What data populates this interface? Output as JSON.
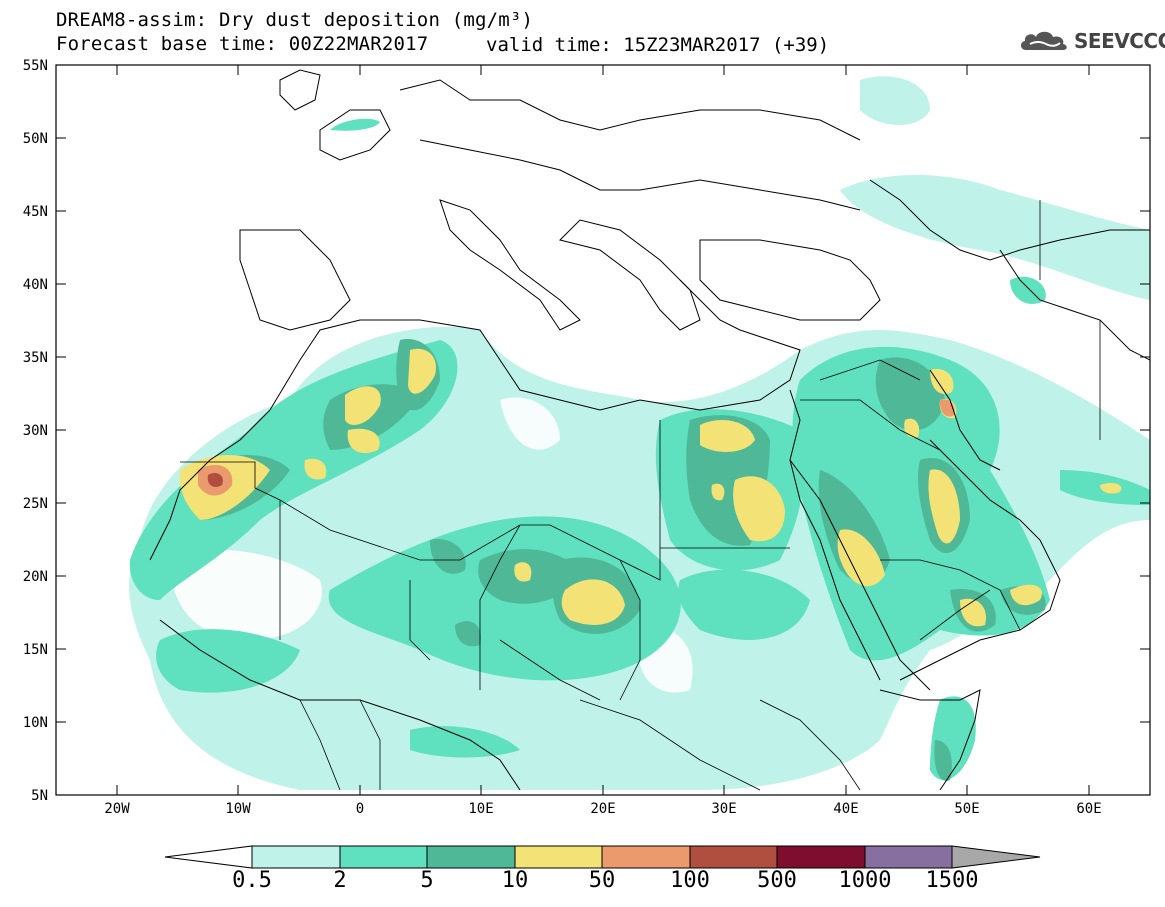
{
  "header": {
    "title_line1": "DREAM8-assim: Dry dust deposition (mg/m³)",
    "title_line2": "Forecast base time: 00Z22MAR2017",
    "valid_time": "valid time: 15Z23MAR2017 (+39)",
    "logo_text": "SEEVCCC",
    "logo_icon": "cloud-icon"
  },
  "map": {
    "lat_labels": [
      "55N",
      "50N",
      "45N",
      "40N",
      "35N",
      "30N",
      "25N",
      "20N",
      "15N",
      "10N",
      "5N"
    ],
    "lon_labels": [
      "20W",
      "10W",
      "0",
      "10E",
      "20E",
      "30E",
      "40E",
      "50E",
      "60E"
    ],
    "lon_range": [
      -25,
      65
    ],
    "lat_range": [
      5,
      55
    ]
  },
  "colorbar": {
    "levels": [
      "0.5",
      "2",
      "5",
      "10",
      "50",
      "100",
      "500",
      "1000",
      "1500"
    ],
    "colors": [
      "#ffffff",
      "#bff2e8",
      "#5fe0be",
      "#4fb897",
      "#f3e276",
      "#ea9a6c",
      "#b04e3f",
      "#7e0d2f",
      "#876fa0",
      "#a8a8a8"
    ]
  }
}
